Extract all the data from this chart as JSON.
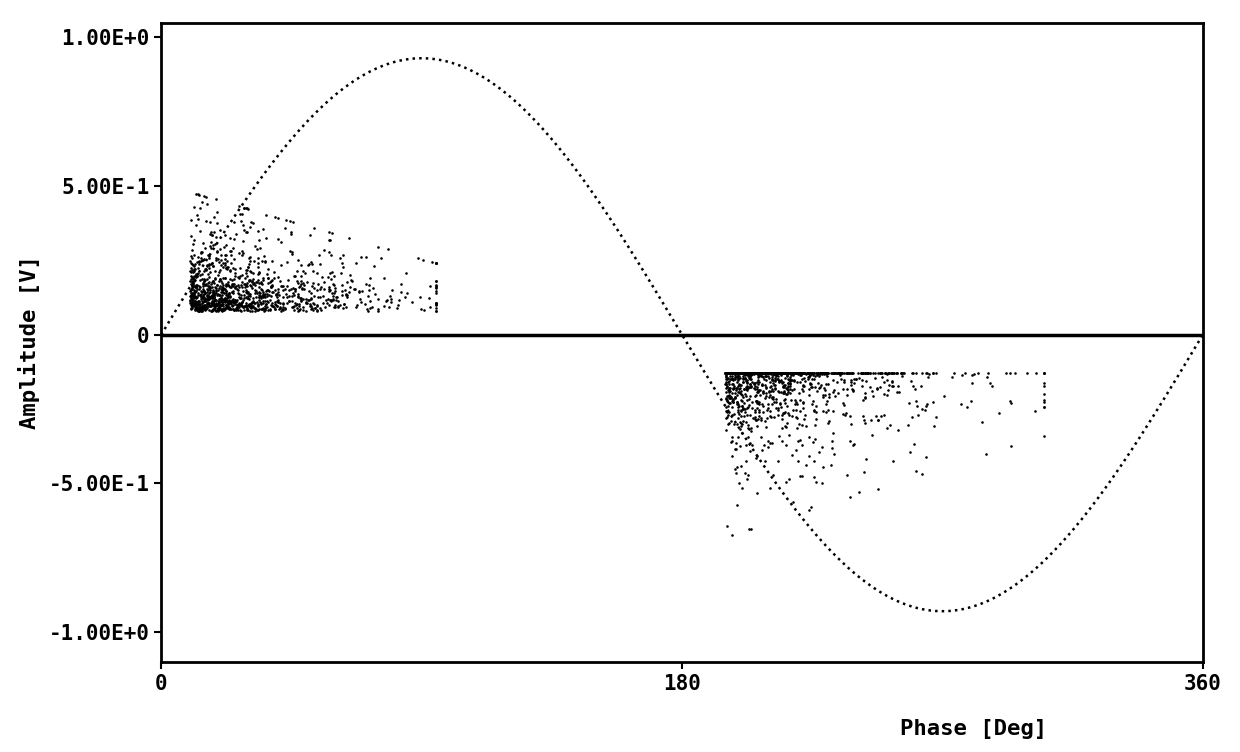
{
  "title": "",
  "xlabel": "Phase [Deg]",
  "ylabel": "Amplitude [V]",
  "xlim": [
    0,
    360
  ],
  "ylim": [
    -1.1,
    1.05
  ],
  "yticks": [
    -1.0,
    -0.5,
    0,
    0.5,
    1.0
  ],
  "ytick_labels": [
    "-1.00E+0",
    "-5.00E-1",
    "0",
    "5.00E-1",
    "1.00E+0"
  ],
  "xticks": [
    0,
    180,
    360
  ],
  "sine_amplitude": 0.93,
  "sine_color": "#000000",
  "scatter1_phase_min": 10,
  "scatter1_phase_max": 95,
  "scatter1_amp_min": 0.08,
  "scatter1_amp_max": 0.48,
  "scatter2_phase_min": 195,
  "scatter2_phase_max": 305,
  "scatter2_amp_min": -0.68,
  "scatter2_amp_max": -0.13,
  "n_points1": 1200,
  "n_points2": 1200,
  "scatter_color": "#000000",
  "scatter_size": 3,
  "background_color": "#ffffff",
  "hline_y": 0,
  "hline_color": "#000000",
  "hline_lw": 2.5,
  "font_size": 16,
  "tick_font_size": 15
}
